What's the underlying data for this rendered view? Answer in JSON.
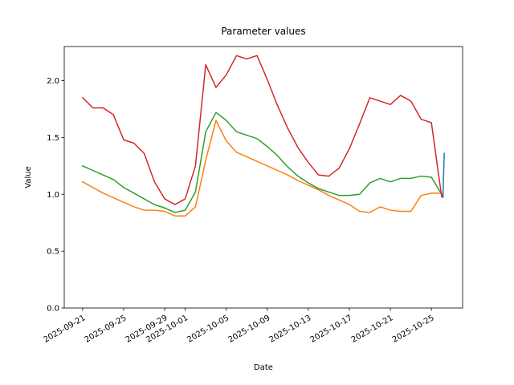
{
  "chart_data": {
    "type": "line",
    "title": "Parameter values",
    "x_label": "Date",
    "y_label": "Value",
    "x": [
      "2025-09-21",
      "2025-09-22",
      "2025-09-23",
      "2025-09-24",
      "2025-09-25",
      "2025-09-26",
      "2025-09-27",
      "2025-09-28",
      "2025-09-29",
      "2025-09-30",
      "2025-10-01",
      "2025-10-02",
      "2025-10-03",
      "2025-10-04",
      "2025-10-05",
      "2025-10-06",
      "2025-10-07",
      "2025-10-08",
      "2025-10-09",
      "2025-10-10",
      "2025-10-11",
      "2025-10-12",
      "2025-10-13",
      "2025-10-14",
      "2025-10-15",
      "2025-10-16",
      "2025-10-17",
      "2025-10-18",
      "2025-10-19",
      "2025-10-20",
      "2025-10-21",
      "2025-10-22",
      "2025-10-23",
      "2025-10-24",
      "2025-10-25",
      "2025-10-26"
    ],
    "series": [
      {
        "color": "#1f77b4",
        "x": [
          "2025-10-26T00:00",
          "2025-10-26T03:00",
          "2025-10-26T06:00"
        ],
        "values": [
          1.0,
          0.97,
          1.36
        ]
      },
      {
        "color": "#ff7f0e",
        "values": [
          1.11,
          1.06,
          1.01,
          0.97,
          0.93,
          0.89,
          0.86,
          0.86,
          0.85,
          0.81,
          0.81,
          0.89,
          1.3,
          1.65,
          1.47,
          1.37,
          1.33,
          1.29,
          1.25,
          1.21,
          1.17,
          1.12,
          1.08,
          1.04,
          0.99,
          0.95,
          0.91,
          0.85,
          0.84,
          0.89,
          0.86,
          0.85,
          0.85,
          0.99,
          1.01,
          1.01
        ]
      },
      {
        "color": "#2ca02c",
        "values": [
          1.25,
          1.21,
          1.17,
          1.13,
          1.06,
          1.01,
          0.96,
          0.91,
          0.88,
          0.84,
          0.86,
          1.02,
          1.55,
          1.72,
          1.65,
          1.55,
          1.52,
          1.49,
          1.42,
          1.34,
          1.24,
          1.16,
          1.1,
          1.05,
          1.02,
          0.99,
          0.99,
          1.0,
          1.1,
          1.14,
          1.11,
          1.14,
          1.14,
          1.16,
          1.15,
          1.0
        ]
      },
      {
        "color": "#d62728",
        "values": [
          1.85,
          1.76,
          1.76,
          1.7,
          1.48,
          1.45,
          1.36,
          1.11,
          0.96,
          0.91,
          0.96,
          1.25,
          2.14,
          1.94,
          2.05,
          2.22,
          2.19,
          2.22,
          2.01,
          1.78,
          1.58,
          1.41,
          1.28,
          1.17,
          1.16,
          1.23,
          1.4,
          1.62,
          1.85,
          1.82,
          1.79,
          1.87,
          1.82,
          1.66,
          1.63,
          0.98
        ]
      }
    ],
    "xlim": [
      "2025-09-19T05:00",
      "2025-10-28T01:00"
    ],
    "xticks": [
      "2025-09-21",
      "2025-09-25",
      "2025-09-29",
      "2025-10-01",
      "2025-10-05",
      "2025-10-09",
      "2025-10-13",
      "2025-10-17",
      "2025-10-21",
      "2025-10-25"
    ],
    "ylim": [
      0,
      2.3
    ],
    "yticks": [
      {
        "value": 0,
        "label": "0.0"
      },
      0.5,
      {
        "value": 1,
        "label": "1.0"
      },
      1.5,
      {
        "value": 2,
        "label": "2.0"
      }
    ],
    "grid": false
  }
}
